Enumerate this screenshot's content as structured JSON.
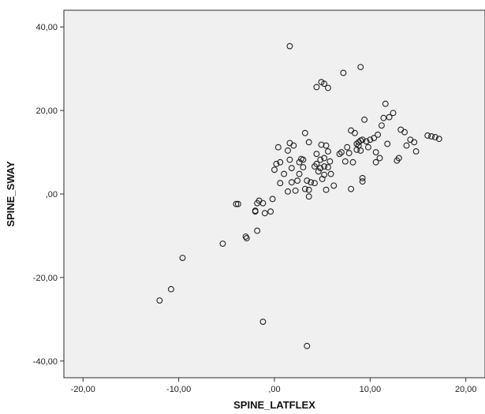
{
  "chart_data": {
    "type": "scatter",
    "xlabel": "SPINE_LATFLEX",
    "ylabel": "SPINE_SWAY",
    "xlim": [
      -22,
      22
    ],
    "ylim": [
      -44,
      44
    ],
    "grid": false,
    "x_ticks": [
      {
        "value": -20,
        "label": "-20,00"
      },
      {
        "value": -10,
        "label": "-10,00"
      },
      {
        "value": 0,
        "label": ",00"
      },
      {
        "value": 10,
        "label": "10,00"
      },
      {
        "value": 20,
        "label": "20,00"
      }
    ],
    "y_ticks": [
      {
        "value": 40,
        "label": "40,00"
      },
      {
        "value": 20,
        "label": "20,00"
      },
      {
        "value": 0,
        "label": ",00"
      },
      {
        "value": -20,
        "label": "-20,00"
      },
      {
        "value": -40,
        "label": "-40,00"
      }
    ],
    "points": [
      [
        -12.0,
        -25.5
      ],
      [
        -10.8,
        -22.8
      ],
      [
        -9.6,
        -15.3
      ],
      [
        -5.4,
        -11.9
      ],
      [
        -3.0,
        -10.2
      ],
      [
        -2.9,
        -10.6
      ],
      [
        -1.8,
        -8.8
      ],
      [
        -1.2,
        -30.6
      ],
      [
        -3.8,
        -2.4
      ],
      [
        -4.0,
        -2.4
      ],
      [
        -2.0,
        -4.0
      ],
      [
        -2.0,
        -4.2
      ],
      [
        -1.6,
        -1.6
      ],
      [
        -1.2,
        -2.2
      ],
      [
        -1.8,
        -2.2
      ],
      [
        -1.0,
        -4.6
      ],
      [
        -0.4,
        -4.2
      ],
      [
        -0.2,
        -1.2
      ],
      [
        0.0,
        5.8
      ],
      [
        0.2,
        7.2
      ],
      [
        0.6,
        7.6
      ],
      [
        0.4,
        11.2
      ],
      [
        0.6,
        2.6
      ],
      [
        1.0,
        4.8
      ],
      [
        1.6,
        8.2
      ],
      [
        1.4,
        10.4
      ],
      [
        1.6,
        12.2
      ],
      [
        1.8,
        2.8
      ],
      [
        2.0,
        11.6
      ],
      [
        1.4,
        0.6
      ],
      [
        1.8,
        6.2
      ],
      [
        2.2,
        0.8
      ],
      [
        2.4,
        3.2
      ],
      [
        2.6,
        4.8
      ],
      [
        2.6,
        7.6
      ],
      [
        2.8,
        8.4
      ],
      [
        3.0,
        6.4
      ],
      [
        3.2,
        1.2
      ],
      [
        3.0,
        8.2
      ],
      [
        3.4,
        3.2
      ],
      [
        3.6,
        -0.6
      ],
      [
        3.6,
        1.0
      ],
      [
        3.6,
        12.4
      ],
      [
        3.8,
        2.8
      ],
      [
        3.2,
        14.6
      ],
      [
        3.4,
        -36.4
      ],
      [
        1.6,
        35.4
      ],
      [
        4.2,
        2.6
      ],
      [
        4.2,
        6.6
      ],
      [
        4.4,
        7.2
      ],
      [
        4.4,
        9.6
      ],
      [
        4.6,
        5.4
      ],
      [
        4.8,
        6.2
      ],
      [
        4.8,
        8.2
      ],
      [
        4.9,
        11.8
      ],
      [
        5.0,
        3.6
      ],
      [
        5.2,
        4.6
      ],
      [
        5.2,
        6.6
      ],
      [
        5.2,
        8.6
      ],
      [
        5.4,
        1.0
      ],
      [
        5.4,
        11.6
      ],
      [
        5.6,
        6.4
      ],
      [
        5.8,
        7.8
      ],
      [
        5.6,
        10.2
      ],
      [
        5.9,
        4.8
      ],
      [
        4.4,
        25.6
      ],
      [
        4.9,
        26.8
      ],
      [
        5.2,
        26.4
      ],
      [
        5.6,
        25.4
      ],
      [
        6.2,
        2.0
      ],
      [
        6.8,
        9.6
      ],
      [
        7.0,
        10.0
      ],
      [
        7.4,
        7.8
      ],
      [
        7.2,
        29.0
      ],
      [
        7.6,
        11.2
      ],
      [
        7.8,
        9.8
      ],
      [
        8.0,
        15.2
      ],
      [
        8.0,
        1.2
      ],
      [
        8.2,
        7.6
      ],
      [
        8.4,
        14.6
      ],
      [
        8.6,
        10.6
      ],
      [
        8.6,
        12.0
      ],
      [
        8.8,
        11.6
      ],
      [
        8.8,
        12.4
      ],
      [
        9.0,
        12.8
      ],
      [
        9.0,
        10.4
      ],
      [
        9.2,
        3.0
      ],
      [
        9.2,
        3.8
      ],
      [
        9.2,
        13.0
      ],
      [
        9.4,
        17.8
      ],
      [
        9.0,
        30.4
      ],
      [
        9.6,
        12.6
      ],
      [
        9.8,
        11.2
      ],
      [
        10.0,
        13.0
      ],
      [
        10.4,
        13.4
      ],
      [
        10.6,
        10.0
      ],
      [
        10.8,
        14.2
      ],
      [
        11.0,
        8.6
      ],
      [
        10.6,
        7.6
      ],
      [
        11.2,
        16.4
      ],
      [
        11.4,
        18.2
      ],
      [
        11.6,
        21.6
      ],
      [
        11.8,
        12.0
      ],
      [
        12.0,
        18.4
      ],
      [
        12.4,
        19.4
      ],
      [
        12.8,
        8.0
      ],
      [
        13.0,
        8.6
      ],
      [
        13.2,
        15.4
      ],
      [
        13.6,
        14.8
      ],
      [
        13.8,
        11.6
      ],
      [
        14.2,
        13.0
      ],
      [
        14.6,
        12.4
      ],
      [
        14.8,
        10.2
      ],
      [
        16.0,
        14.0
      ],
      [
        16.4,
        13.8
      ],
      [
        16.8,
        13.6
      ],
      [
        17.2,
        13.2
      ]
    ]
  }
}
